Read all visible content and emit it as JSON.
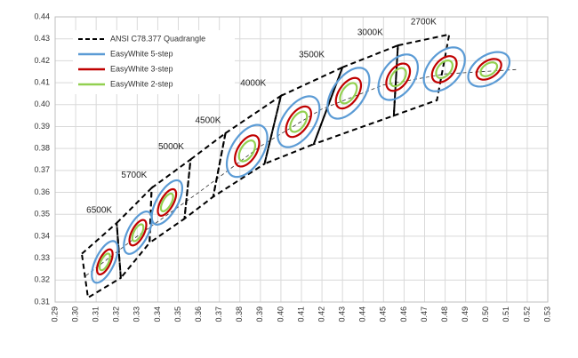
{
  "chart_data": {
    "type": "chromaticity",
    "legend": "upper left",
    "grid": true,
    "xlim": [
      0.29,
      0.53
    ],
    "ylim": [
      0.31,
      0.44
    ],
    "xticks": [
      0.29,
      {
        "value": 0.3,
        "label": "0.30"
      },
      0.31,
      0.32,
      0.33,
      0.34,
      0.35,
      0.36,
      0.37,
      0.38,
      0.39,
      {
        "value": 0.4,
        "label": "0.40"
      },
      0.41,
      0.42,
      0.43,
      0.44,
      0.45,
      0.46,
      0.47,
      0.48,
      0.49,
      {
        "value": 0.5,
        "label": "0.50"
      },
      0.51,
      0.52,
      0.53
    ],
    "yticks": [
      0.31,
      0.32,
      0.33,
      0.34,
      0.35,
      0.36,
      0.37,
      0.38,
      0.39,
      {
        "value": 0.4,
        "label": "0.40"
      },
      0.41,
      0.42,
      0.43,
      0.44
    ],
    "quadrangle_name": "ANSI C78.377 Quadrangle",
    "quadrangle_color": "#000000",
    "quadrangles": [
      {
        "label": "6500K",
        "x": [
          0.303,
          0.32,
          0.322,
          0.306
        ],
        "y": [
          0.332,
          0.346,
          0.321,
          0.312
        ]
      },
      {
        "label": "5700K",
        "x": [
          0.32,
          0.337,
          0.336,
          0.322
        ],
        "y": [
          0.346,
          0.362,
          0.337,
          0.321
        ]
      },
      {
        "label": "5000K",
        "x": [
          0.337,
          0.356,
          0.353,
          0.336
        ],
        "y": [
          0.362,
          0.375,
          0.348,
          0.337
        ]
      },
      {
        "label": "4500K",
        "x": [
          0.356,
          0.373,
          0.367,
          0.353
        ],
        "y": [
          0.375,
          0.387,
          0.358,
          0.348
        ]
      },
      {
        "label": "4000K",
        "x": [
          0.373,
          0.4,
          0.392,
          0.367
        ],
        "y": [
          0.387,
          0.404,
          0.373,
          0.358
        ]
      },
      {
        "label": "3500K",
        "x": [
          0.4,
          0.43,
          0.416,
          0.392
        ],
        "y": [
          0.404,
          0.417,
          0.382,
          0.373
        ]
      },
      {
        "label": "3000K",
        "x": [
          0.43,
          0.457,
          0.455,
          0.416
        ],
        "y": [
          0.417,
          0.427,
          0.395,
          0.382
        ]
      },
      {
        "label": "2700K",
        "x": [
          0.457,
          0.482,
          0.476,
          0.455
        ],
        "y": [
          0.427,
          0.432,
          0.402,
          0.395
        ]
      }
    ],
    "locus": {
      "x": [
        0.305,
        0.33,
        0.36,
        0.39,
        0.42,
        0.45,
        0.48,
        0.515
      ],
      "y": [
        0.322,
        0.34,
        0.36,
        0.381,
        0.398,
        0.409,
        0.414,
        0.416
      ]
    },
    "ellipse_centers": {
      "x": [
        0.3142,
        0.3303,
        0.3445,
        0.3835,
        0.4086,
        0.4329,
        0.4571,
        0.4796,
        0.5013
      ],
      "y": [
        0.3283,
        0.3416,
        0.3554,
        0.3789,
        0.3922,
        0.4052,
        0.4125,
        0.4161,
        0.4161
      ],
      "angle": [
        62,
        60,
        58,
        55,
        52,
        52,
        50,
        45,
        30
      ]
    },
    "series": [
      {
        "name": "EasyWhite 5-step",
        "color": "#5b9bd5",
        "a": [
          0.0105,
          0.0108,
          0.0115,
          0.0135,
          0.0135,
          0.0135,
          0.012,
          0.012,
          0.011
        ],
        "b": [
          0.0045,
          0.0048,
          0.005,
          0.0075,
          0.0075,
          0.0075,
          0.0075,
          0.0075,
          0.0065
        ]
      },
      {
        "name": "EasyWhite 3-step",
        "color": "#c00000",
        "a": [
          0.0063,
          0.0065,
          0.0069,
          0.0081,
          0.0081,
          0.0081,
          0.0072,
          0.0072,
          0.0066
        ],
        "b": [
          0.0027,
          0.0029,
          0.003,
          0.0045,
          0.0045,
          0.0045,
          0.0045,
          0.0045,
          0.0039
        ]
      },
      {
        "name": "EasyWhite 2-step",
        "color": "#92d050",
        "a": [
          0.0042,
          0.0043,
          0.0046,
          0.0054,
          0.0054,
          0.0054,
          0.0048,
          0.0048,
          0.0044
        ],
        "b": [
          0.0018,
          0.0019,
          0.002,
          0.003,
          0.003,
          0.003,
          0.003,
          0.003,
          0.0026
        ]
      }
    ]
  }
}
